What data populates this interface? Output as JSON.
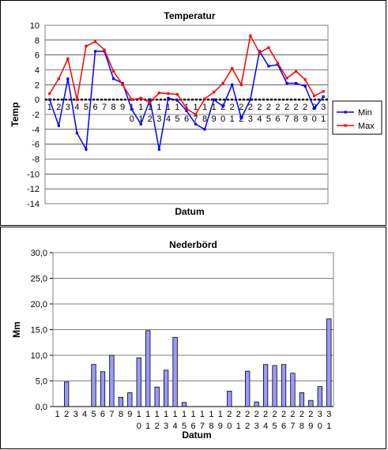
{
  "chart_data": [
    {
      "type": "line",
      "title": "Temperatur",
      "xlabel": "Datum",
      "ylabel": "Temp",
      "ylim": [
        -14,
        10
      ],
      "ytick_step": 2,
      "x_tick_labels": [
        [
          "1"
        ],
        [
          "2"
        ],
        [
          "3"
        ],
        [
          "4"
        ],
        [
          "5"
        ],
        [
          "6"
        ],
        [
          "7"
        ],
        [
          "8"
        ],
        [
          "9"
        ],
        [
          "1",
          "0"
        ],
        [
          "1",
          "1"
        ],
        [
          "1",
          "2"
        ],
        [
          "1",
          "3"
        ],
        [
          "1",
          "4"
        ],
        [
          "1",
          "5"
        ],
        [
          "1",
          "6"
        ],
        [
          "1",
          "7"
        ],
        [
          "1",
          "8"
        ],
        [
          "1",
          "9"
        ],
        [
          "2",
          "0"
        ],
        [
          "2",
          "1"
        ],
        [
          "2",
          "2"
        ],
        [
          "2",
          "3"
        ],
        [
          "2",
          "4"
        ],
        [
          "2",
          "5"
        ],
        [
          "2",
          "6"
        ],
        [
          "2",
          "7"
        ],
        [
          "2",
          "8"
        ],
        [
          "2",
          "9"
        ],
        [
          "3",
          "0"
        ],
        [
          "3",
          "1"
        ]
      ],
      "grid": true,
      "legend": "right",
      "series": [
        {
          "name": "Min",
          "color": "#0000ff",
          "values": [
            0,
            -3.5,
            2.8,
            -4.5,
            -6.7,
            6.5,
            6.5,
            2.8,
            2.2,
            -1.3,
            -3.3,
            0,
            -6.7,
            0.2,
            -0.1,
            -1.5,
            -3.3,
            -4,
            0,
            -0.9,
            2,
            -2.5,
            0,
            6.5,
            4.5,
            4.7,
            2.2,
            2.2,
            1.8,
            -1.2,
            0.4
          ]
        },
        {
          "name": "Max",
          "color": "#ff0000",
          "values": [
            0.8,
            2.8,
            5.5,
            0,
            7.2,
            7.8,
            6.7,
            3.8,
            2,
            0,
            0.2,
            -0.4,
            0.9,
            0.8,
            0.7,
            -1.2,
            -2,
            0.1,
            1,
            2.2,
            4.2,
            2,
            8.6,
            6.3,
            7,
            4.9,
            2.9,
            3.8,
            2.7,
            0.5,
            1.1
          ]
        }
      ]
    },
    {
      "type": "bar",
      "title": "Nederbörd",
      "xlabel": "Datum",
      "ylabel": "Mm",
      "ylim": [
        0,
        30
      ],
      "ytick_step": 5,
      "ytick_labels": [
        "0,0",
        "5,0",
        "10,0",
        "15,0",
        "20,0",
        "25,0",
        "30,0"
      ],
      "x_tick_labels": [
        [
          "1"
        ],
        [
          "2"
        ],
        [
          "3"
        ],
        [
          "4"
        ],
        [
          "5"
        ],
        [
          "6"
        ],
        [
          "7"
        ],
        [
          "8"
        ],
        [
          "9"
        ],
        [
          "1",
          "0"
        ],
        [
          "1",
          "1"
        ],
        [
          "1",
          "2"
        ],
        [
          "1",
          "3"
        ],
        [
          "1",
          "4"
        ],
        [
          "1",
          "5"
        ],
        [
          "1",
          "6"
        ],
        [
          "1",
          "7"
        ],
        [
          "1",
          "8"
        ],
        [
          "1",
          "9"
        ],
        [
          "2",
          "0"
        ],
        [
          "2",
          "1"
        ],
        [
          "2",
          "2"
        ],
        [
          "2",
          "3"
        ],
        [
          "2",
          "4"
        ],
        [
          "2",
          "5"
        ],
        [
          "2",
          "6"
        ],
        [
          "2",
          "7"
        ],
        [
          "2",
          "8"
        ],
        [
          "2",
          "9"
        ],
        [
          "3",
          "0"
        ],
        [
          "3",
          "1"
        ]
      ],
      "grid": true,
      "bar_color": "#9999ff",
      "values": [
        0,
        4.8,
        0,
        0,
        8.2,
        6.8,
        10,
        1.8,
        2.7,
        9.5,
        14.8,
        3.8,
        7.1,
        13.5,
        0.8,
        0,
        0,
        0,
        0,
        3,
        0,
        6.9,
        0.9,
        8.2,
        8,
        8.2,
        6.5,
        2.7,
        1.2,
        3.9,
        17.1
      ]
    }
  ]
}
